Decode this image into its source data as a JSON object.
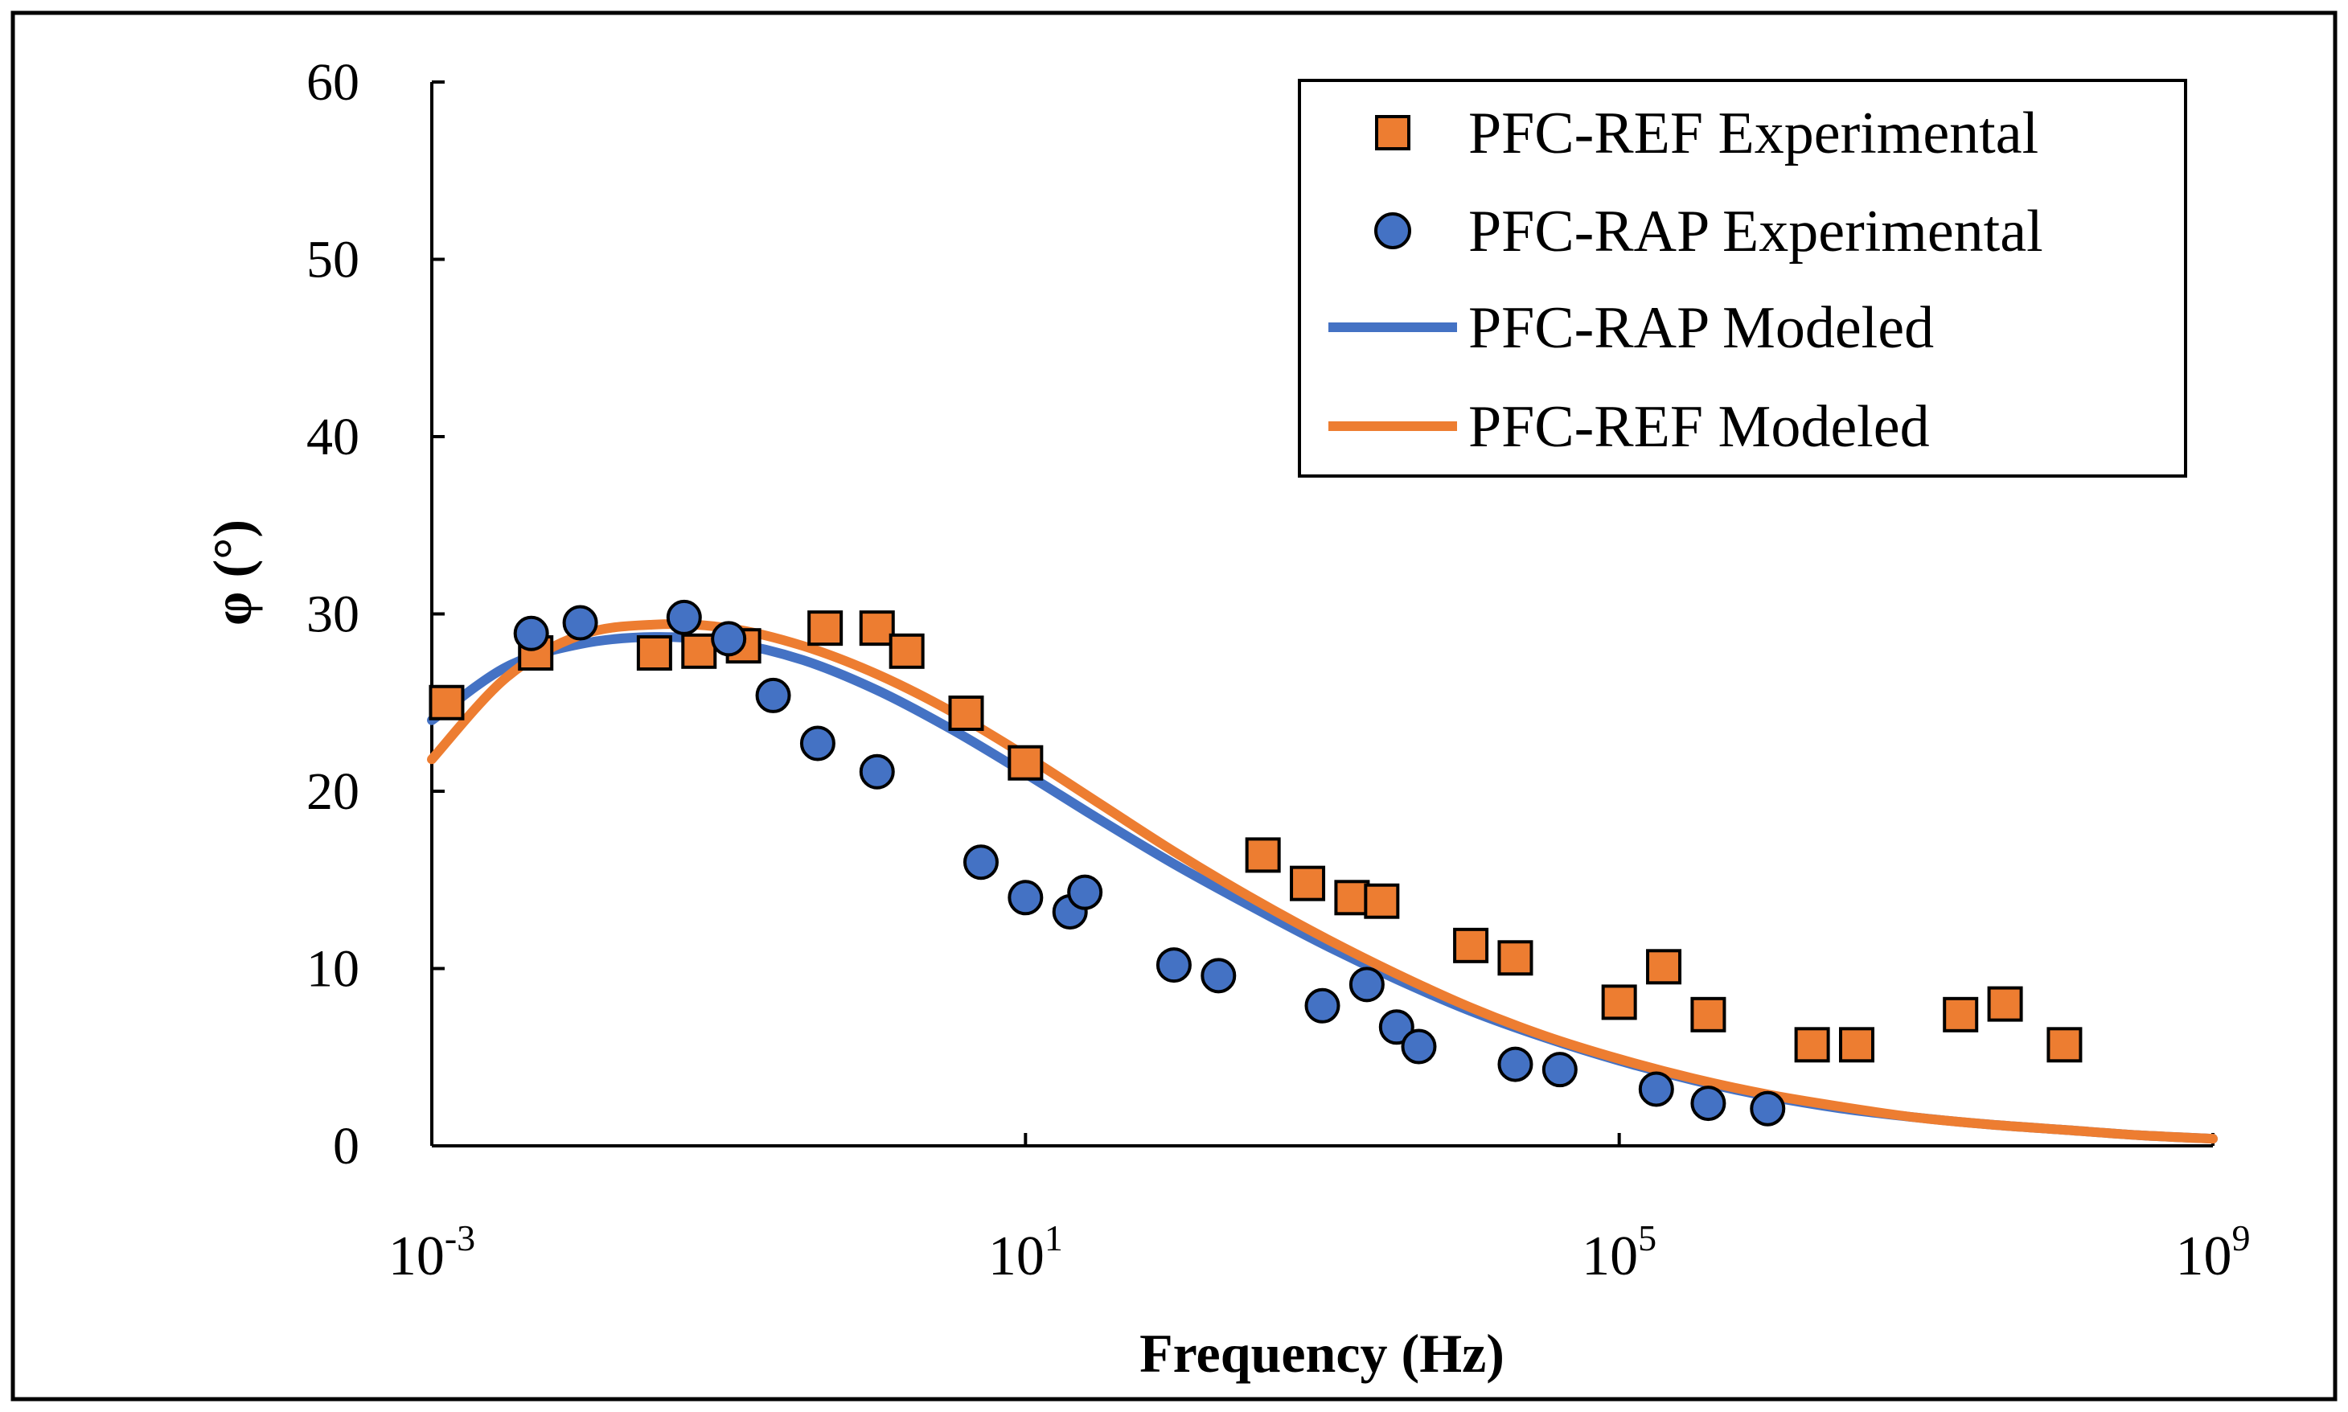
{
  "chart_data": {
    "type": "scatter",
    "title": "",
    "xlabel": "Frequency (Hz)",
    "ylabel": "φ (°)",
    "xscale": "log10",
    "xlim_exponent": [
      -3,
      9
    ],
    "ylim": [
      0,
      60
    ],
    "yticks": [
      0,
      10,
      20,
      30,
      40,
      50,
      60
    ],
    "xticks": [
      {
        "base": "10",
        "exp": "-3",
        "logv": -3
      },
      {
        "base": "10",
        "exp": "1",
        "logv": 1
      },
      {
        "base": "10",
        "exp": "5",
        "logv": 5
      },
      {
        "base": "10",
        "exp": "9",
        "logv": 9
      }
    ],
    "grid": false,
    "legend_position": "top-right",
    "series": [
      {
        "name": "PFC-REF Experimental",
        "kind": "marker-square",
        "color": "#ED7D31",
        "points": [
          [
            -2.9,
            25.0
          ],
          [
            -1.2,
            27.9
          ],
          [
            -0.9,
            28.2
          ],
          [
            0.0,
            29.2
          ],
          [
            0.2,
            27.9
          ],
          [
            0.6,
            24.4
          ],
          [
            1.0,
            21.6
          ],
          [
            -0.35,
            29.2
          ],
          [
            2.6,
            16.4
          ],
          [
            2.9,
            14.8
          ],
          [
            3.2,
            14.0
          ],
          [
            3.4,
            13.8
          ],
          [
            4.0,
            11.3
          ],
          [
            4.3,
            10.6
          ],
          [
            5.0,
            8.1
          ],
          [
            5.3,
            10.1
          ],
          [
            5.6,
            7.4
          ],
          [
            6.3,
            5.7
          ],
          [
            6.6,
            5.7
          ],
          [
            7.3,
            7.4
          ],
          [
            7.6,
            8.0
          ],
          [
            8.0,
            5.7
          ],
          [
            -1.5,
            27.8
          ],
          [
            -2.3,
            27.8
          ]
        ]
      },
      {
        "name": "PFC-RAP Experimental",
        "kind": "marker-circle",
        "color": "#4472C4",
        "points": [
          [
            -2.33,
            28.9
          ],
          [
            -2.0,
            29.5
          ],
          [
            -1.3,
            29.8
          ],
          [
            -1.0,
            28.6
          ],
          [
            -0.7,
            25.4
          ],
          [
            -0.4,
            22.7
          ],
          [
            0.0,
            21.1
          ],
          [
            0.7,
            16.0
          ],
          [
            1.0,
            14.0
          ],
          [
            1.3,
            13.2
          ],
          [
            1.4,
            14.3
          ],
          [
            2.0,
            10.2
          ],
          [
            2.3,
            9.6
          ],
          [
            3.0,
            7.9
          ],
          [
            3.3,
            9.1
          ],
          [
            3.5,
            6.7
          ],
          [
            3.65,
            5.6
          ],
          [
            4.3,
            4.6
          ],
          [
            4.6,
            4.3
          ],
          [
            5.25,
            3.2
          ],
          [
            5.6,
            2.4
          ],
          [
            6.0,
            2.1
          ]
        ]
      },
      {
        "name": "PFC-RAP Modeled",
        "kind": "line",
        "color": "#4472C4",
        "points": [
          [
            -3.0,
            24.0
          ],
          [
            -2.5,
            27.0
          ],
          [
            -2.0,
            28.3
          ],
          [
            -1.5,
            28.7
          ],
          [
            -1.0,
            28.4
          ],
          [
            -0.5,
            27.4
          ],
          [
            0.0,
            25.7
          ],
          [
            0.5,
            23.5
          ],
          [
            1.0,
            21.0
          ],
          [
            1.5,
            18.4
          ],
          [
            2.0,
            15.9
          ],
          [
            2.5,
            13.6
          ],
          [
            3.0,
            11.4
          ],
          [
            3.5,
            9.4
          ],
          [
            4.0,
            7.6
          ],
          [
            4.5,
            6.1
          ],
          [
            5.0,
            4.8
          ],
          [
            5.5,
            3.7
          ],
          [
            6.0,
            2.8
          ],
          [
            6.5,
            2.1
          ],
          [
            7.0,
            1.6
          ],
          [
            7.5,
            1.2
          ],
          [
            8.0,
            0.9
          ],
          [
            8.5,
            0.6
          ],
          [
            9.0,
            0.4
          ]
        ]
      },
      {
        "name": "PFC-REF Modeled",
        "kind": "line",
        "color": "#ED7D31",
        "points": [
          [
            -3.0,
            21.8
          ],
          [
            -2.5,
            26.4
          ],
          [
            -2.0,
            28.8
          ],
          [
            -1.5,
            29.4
          ],
          [
            -1.0,
            29.2
          ],
          [
            -0.5,
            28.2
          ],
          [
            0.0,
            26.6
          ],
          [
            0.5,
            24.5
          ],
          [
            1.0,
            22.0
          ],
          [
            1.5,
            19.3
          ],
          [
            2.0,
            16.6
          ],
          [
            2.5,
            14.1
          ],
          [
            3.0,
            11.8
          ],
          [
            3.5,
            9.7
          ],
          [
            4.0,
            7.8
          ],
          [
            4.5,
            6.2
          ],
          [
            5.0,
            4.9
          ],
          [
            5.5,
            3.8
          ],
          [
            6.0,
            2.9
          ],
          [
            6.5,
            2.2
          ],
          [
            7.0,
            1.6
          ],
          [
            7.5,
            1.2
          ],
          [
            8.0,
            0.9
          ],
          [
            8.5,
            0.6
          ],
          [
            9.0,
            0.4
          ]
        ]
      }
    ]
  }
}
